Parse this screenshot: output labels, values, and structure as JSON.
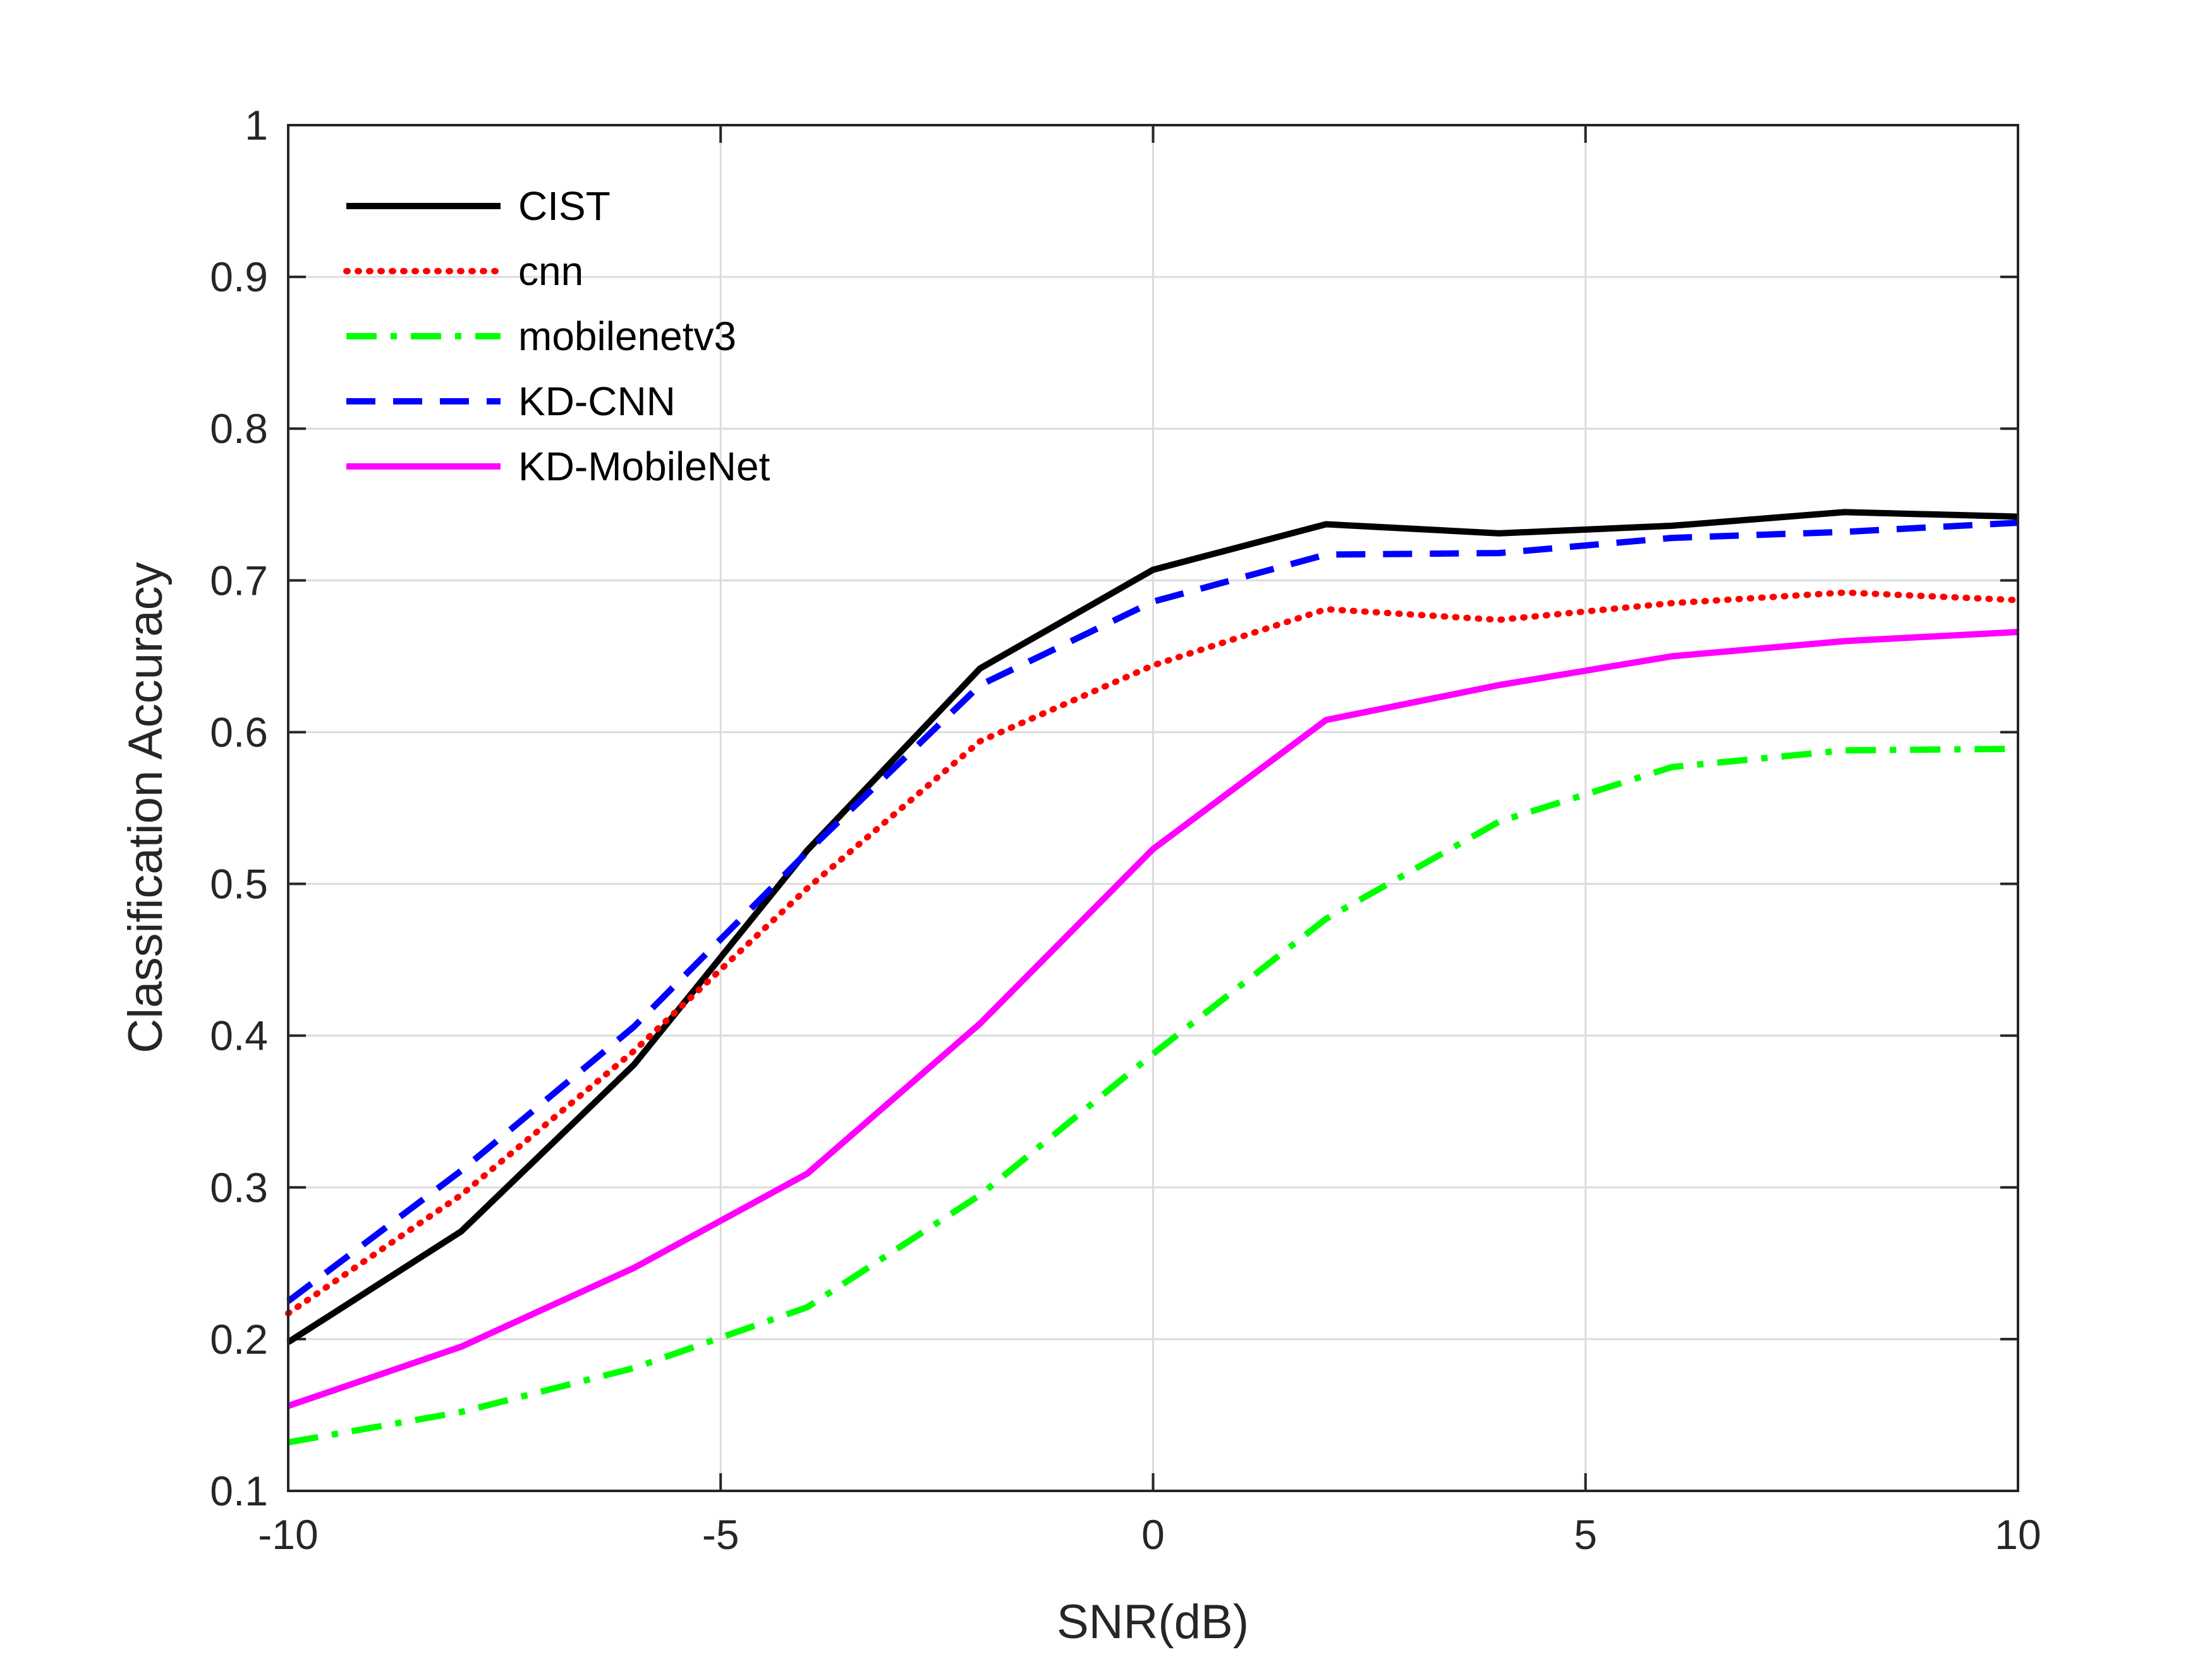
{
  "chart_data": {
    "type": "line",
    "title": "",
    "xlabel": "SNR(dB)",
    "ylabel": "Classification Accuracy",
    "xlim": [
      -10,
      10
    ],
    "ylim": [
      0.1,
      1
    ],
    "xticks": [
      -10,
      -5,
      0,
      5,
      10
    ],
    "xtick_labels": [
      "-10",
      "-5",
      "0",
      "5",
      "10"
    ],
    "yticks": [
      0.1,
      0.2,
      0.3,
      0.4,
      0.5,
      0.6,
      0.7,
      0.8,
      0.9,
      1
    ],
    "ytick_labels": [
      "0.1",
      "0.2",
      "0.3",
      "0.4",
      "0.5",
      "0.6",
      "0.7",
      "0.8",
      "0.9",
      "1"
    ],
    "grid": true,
    "legend_position": "top-left",
    "x": [
      -10,
      -8,
      -6,
      -4,
      -2,
      0,
      2,
      4,
      6,
      8,
      10
    ],
    "series": [
      {
        "name": "CIST",
        "color": "#000000",
        "style": "solid",
        "values": [
          0.198,
          0.271,
          0.381,
          0.522,
          0.642,
          0.707,
          0.737,
          0.731,
          0.736,
          0.745,
          0.742
        ]
      },
      {
        "name": "cnn",
        "color": "#ff0000",
        "style": "dotted",
        "values": [
          0.217,
          0.295,
          0.39,
          0.497,
          0.594,
          0.644,
          0.681,
          0.674,
          0.685,
          0.692,
          0.687
        ]
      },
      {
        "name": "mobilenetv3",
        "color": "#00ff00",
        "style": "dashdot",
        "values": [
          0.132,
          0.152,
          0.181,
          0.221,
          0.295,
          0.388,
          0.477,
          0.541,
          0.577,
          0.588,
          0.589
        ]
      },
      {
        "name": "KD-CNN",
        "color": "#0000ff",
        "style": "dashed",
        "values": [
          0.225,
          0.311,
          0.406,
          0.521,
          0.631,
          0.686,
          0.717,
          0.718,
          0.728,
          0.732,
          0.738
        ]
      },
      {
        "name": "KD-MobileNet",
        "color": "#ff00ff",
        "style": "solid",
        "values": [
          0.156,
          0.195,
          0.247,
          0.309,
          0.408,
          0.523,
          0.608,
          0.631,
          0.65,
          0.66,
          0.666
        ]
      }
    ]
  }
}
